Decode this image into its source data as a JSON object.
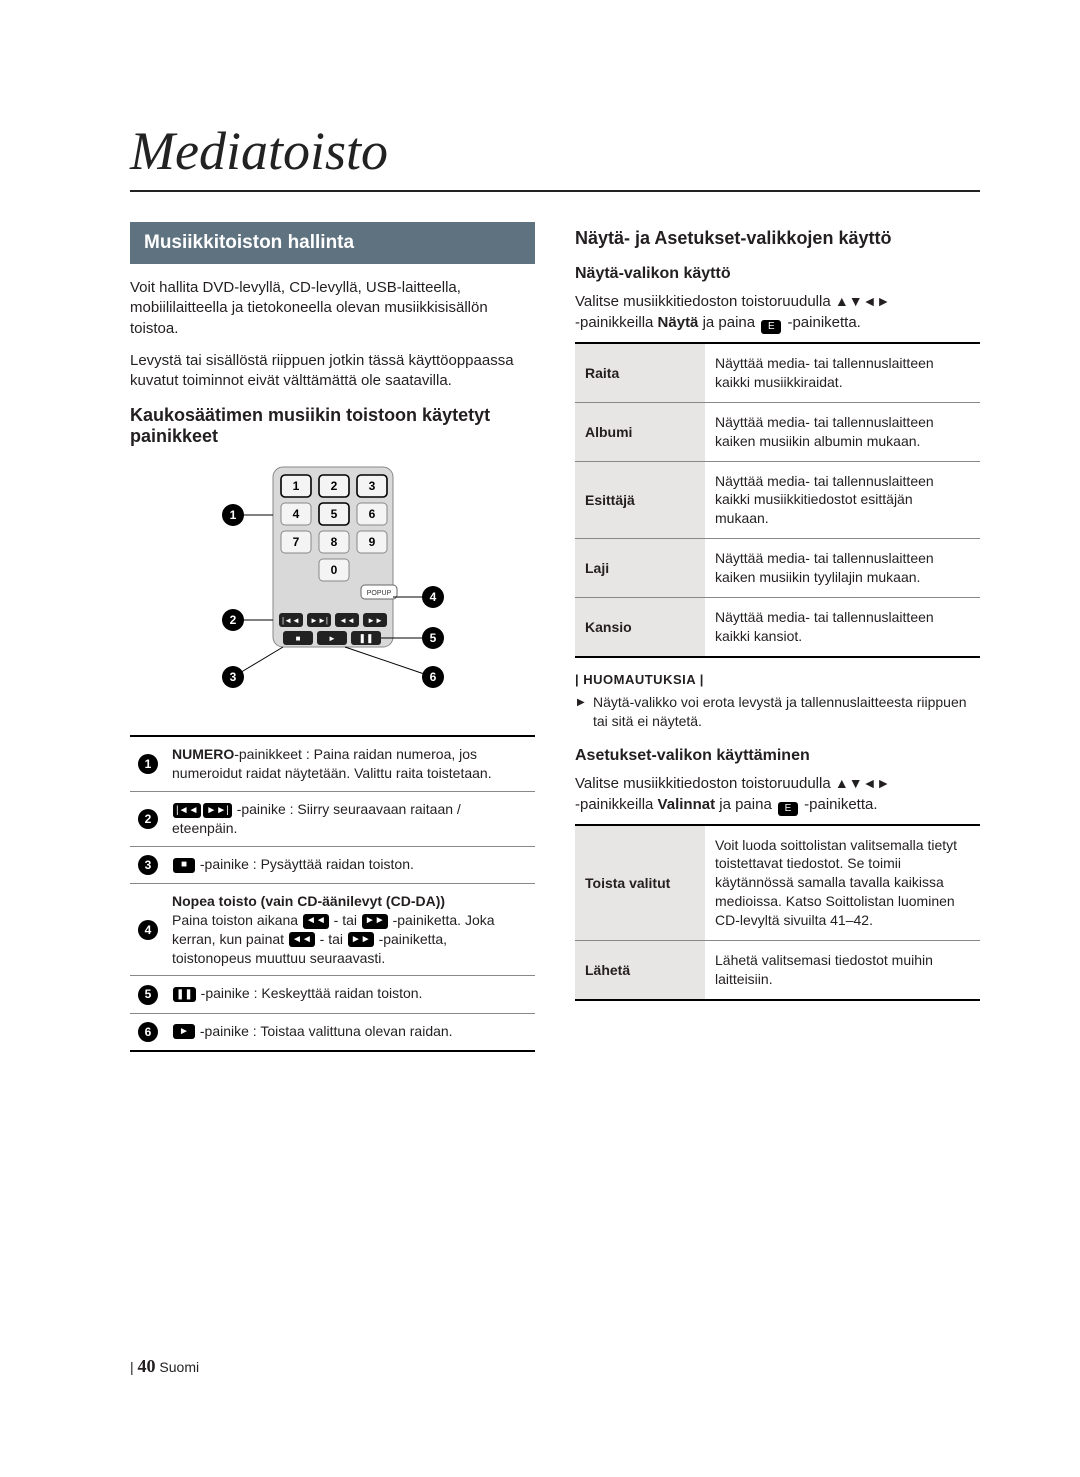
{
  "title": "Mediatoisto",
  "section_bar": "Musiikkitoiston hallinta",
  "intro1": "Voit hallita DVD-levyllä, CD-levyllä, USB-laitteella, mobiililaitteella ja tietokoneella olevan musiikkisisällön toistoa.",
  "intro2": "Levystä tai sisällöstä riippuen jotkin tässä käyttöoppaassa kuvatut toiminnot eivät välttämättä ole saatavilla.",
  "remote_heading": "Kaukosäätimen musiikin toistoon käytetyt painikkeet",
  "remote": {
    "keypad": [
      [
        "1",
        "2",
        "3"
      ],
      [
        "4",
        "5",
        "6"
      ],
      [
        "7",
        "8",
        "9"
      ],
      [
        "",
        "0",
        ""
      ]
    ],
    "popup_label": "POPUP",
    "callouts": [
      "1",
      "2",
      "3",
      "4",
      "5",
      "6"
    ]
  },
  "controls": [
    {
      "n": "1",
      "html": "<b>NUMERO</b>-painikkeet : Paina raidan numeroa, jos numeroidut raidat näytetään. Valittu raita toistetaan."
    },
    {
      "n": "2",
      "html": "<span class='icon-pill'>|◄◄</span><span class='icon-pill'>►►|</span> -painike : Siirry seuraavaan raitaan / eteenpäin."
    },
    {
      "n": "3",
      "html": "<span class='icon-pill'>■</span> -painike : Pysäyttää raidan toiston."
    },
    {
      "n": "4",
      "html": "<b>Nopea toisto (vain CD-äänilevyt (CD-DA))</b><br>Paina toiston aikana <span class='icon-pill'>◄◄</span> - tai <span class='icon-pill'>►►</span> -painiketta. Joka kerran, kun painat <span class='icon-pill'>◄◄</span> - tai <span class='icon-pill'>►►</span> -painiketta, toistonopeus muuttuu seuraavasti."
    },
    {
      "n": "5",
      "html": "<span class='icon-pill'>❚❚</span> -painike : Keskeyttää raidan toiston."
    },
    {
      "n": "6",
      "html": "<span class='icon-pill'>►</span> -painike : Toistaa valittuna olevan raidan."
    }
  ],
  "right": {
    "h1": "Näytä- ja Asetukset-valikkojen käyttö",
    "h2a": "Näytä-valikon käyttö",
    "inst_a_pre": "Valitse musiikkitiedoston toistoruudulla ",
    "inst_a_mid": "-painikkeilla ",
    "inst_a_bold1": "Näytä",
    "inst_a_mid2": " ja paina ",
    "inst_a_end": "-painiketta.",
    "view_rows": [
      {
        "k": "Raita",
        "v": "Näyttää media- tai tallennuslaitteen kaikki musiikkiraidat."
      },
      {
        "k": "Albumi",
        "v": "Näyttää media- tai tallennuslaitteen kaiken musiikin albumin mukaan."
      },
      {
        "k": "Esittäjä",
        "v": "Näyttää media- tai tallennuslaitteen kaikki musiikkitiedostot esittäjän mukaan."
      },
      {
        "k": "Laji",
        "v": "Näyttää media- tai tallennuslaitteen kaiken musiikin tyylilajin mukaan."
      },
      {
        "k": "Kansio",
        "v": "Näyttää media- tai tallennuslaitteen kaikki kansiot."
      }
    ],
    "note_head": "| HUOMAUTUKSIA |",
    "note1": "Näytä-valikko voi erota levystä ja tallennuslaitteesta riippuen tai sitä ei näytetä.",
    "h2b": "Asetukset-valikon käyttäminen",
    "inst_b_pre": "Valitse musiikkitiedoston toistoruudulla ",
    "inst_b_mid": "-painikkeilla ",
    "inst_b_bold1": "Valinnat",
    "inst_b_mid2": " ja paina ",
    "inst_b_end": "-painiketta.",
    "opt_rows": [
      {
        "k": "Toista valitut",
        "v": "Voit luoda soittolistan valitsemalla tietyt toistettavat tiedostot. Se toimii käytännössä samalla tavalla kaikissa medioissa. Katso Soittolistan luominen CD-levyltä sivuilta 41–42."
      },
      {
        "k": "Lähetä",
        "v": "Lähetä valitsemasi tiedostot muihin laitteisiin."
      }
    ]
  },
  "footer": {
    "page": "40",
    "lang": "Suomi",
    "sep": "| "
  },
  "colors": {
    "bar": "#5f7280",
    "th_bg": "#e8e6e4",
    "text": "#231f20"
  }
}
